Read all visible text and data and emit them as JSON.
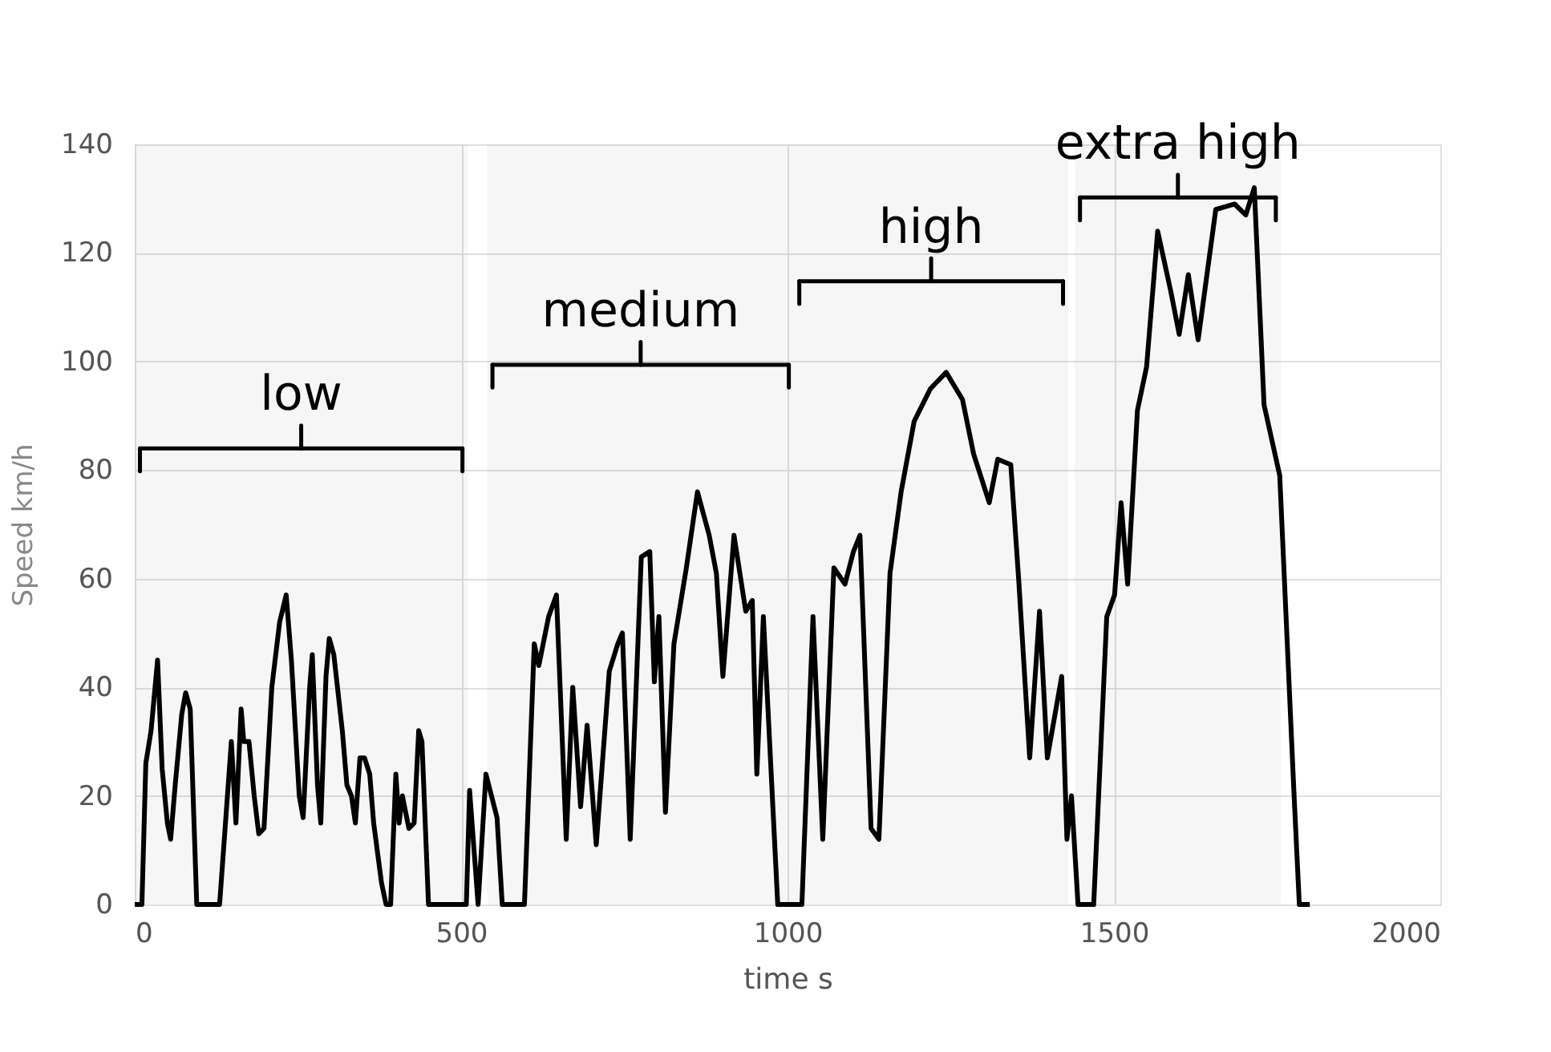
{
  "chart_data": {
    "type": "line",
    "xlabel": "time s",
    "ylabel": "Speed km/h",
    "xlim": [
      0,
      2000
    ],
    "xticks": [
      0,
      500,
      1000,
      1500,
      2000
    ],
    "ylim": [
      0,
      140
    ],
    "yticks": [
      0,
      20,
      40,
      60,
      80,
      100,
      120,
      140
    ],
    "grid": true,
    "marker": "none",
    "line_style": "solid",
    "series": [
      {
        "color": "#000000",
        "x": [
          0,
          11,
          17,
          25,
          35,
          42,
          50,
          55,
          62,
          72,
          78,
          85,
          95,
          130,
          148,
          155,
          163,
          167,
          175,
          183,
          190,
          198,
          210,
          222,
          232,
          240,
          252,
          258,
          268,
          272,
          280,
          285,
          293,
          298,
          305,
          318,
          325,
          332,
          338,
          345,
          352,
          360,
          366,
          378,
          385,
          392,
          400,
          405,
          410,
          420,
          428,
          435,
          440,
          450,
          508,
          513,
          526,
          538,
          555,
          563,
          597,
          612,
          619,
          634,
          646,
          661,
          671,
          683,
          693,
          707,
          727,
          740,
          747,
          759,
          776,
          789,
          796,
          803,
          813,
          826,
          845,
          862,
          880,
          891,
          901,
          918,
          936,
          946,
          953,
          963,
          985,
          1022,
          1039,
          1054,
          1071,
          1088,
          1101,
          1111,
          1128,
          1140,
          1157,
          1174,
          1194,
          1219,
          1243,
          1268,
          1285,
          1309,
          1322,
          1342,
          1354,
          1371,
          1386,
          1398,
          1420,
          1428,
          1435,
          1445,
          1469,
          1489,
          1501,
          1511,
          1521,
          1536,
          1550,
          1567,
          1587,
          1600,
          1614,
          1629,
          1656,
          1685,
          1702,
          1715,
          1730,
          1754,
          1776,
          1784,
          1800
        ],
        "values": [
          0,
          0,
          26,
          32,
          45,
          25,
          15,
          12,
          22,
          35,
          39,
          36,
          0,
          0,
          30,
          15,
          36,
          30,
          30,
          20,
          13,
          14,
          40,
          52,
          57,
          45,
          20,
          16,
          40,
          46,
          22,
          15,
          42,
          49,
          46,
          32,
          22,
          20,
          15,
          27,
          27,
          24,
          15,
          4,
          0,
          0,
          24,
          15,
          20,
          14,
          15,
          32,
          30,
          0,
          0,
          21,
          0,
          24,
          16,
          0,
          0,
          48,
          44,
          53,
          57,
          12,
          40,
          18,
          33,
          11,
          43,
          48,
          50,
          12,
          64,
          65,
          41,
          53,
          17,
          48,
          62,
          76,
          68,
          61,
          42,
          68,
          54,
          56,
          24,
          53,
          0,
          0,
          53,
          12,
          62,
          59,
          65,
          68,
          14,
          12,
          61,
          76,
          89,
          95,
          98,
          93,
          83,
          74,
          82,
          81,
          60,
          27,
          54,
          27,
          42,
          12,
          20,
          0,
          0,
          53,
          57,
          74,
          59,
          91,
          99,
          124,
          113,
          105,
          116,
          104,
          128,
          129,
          127,
          132,
          92,
          79,
          20,
          0,
          0
        ]
      }
    ],
    "bands": [
      {
        "axis": "x",
        "from": 0,
        "to": 510,
        "label": "low"
      },
      {
        "axis": "x",
        "from": 540,
        "to": 1010,
        "label": "medium"
      },
      {
        "axis": "x",
        "from": 1010,
        "to": 1430,
        "label": "high"
      },
      {
        "axis": "x",
        "from": 1440,
        "to": 1756,
        "label": "extra high"
      }
    ]
  }
}
